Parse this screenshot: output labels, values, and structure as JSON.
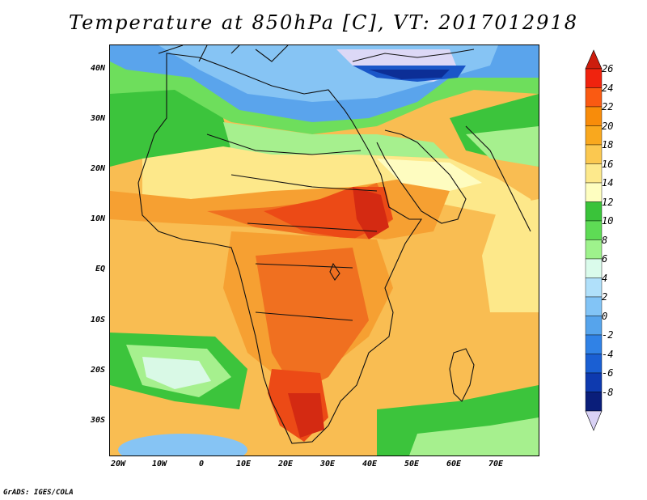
{
  "title": "Temperature at 850hPa [C], VT: 2017012918",
  "credit": "GrADS: IGES/COLA",
  "map": {
    "variable": "Temperature at 850hPa",
    "units": "C",
    "valid_time": "2017012918",
    "lat_labels": [
      "40N",
      "30N",
      "20N",
      "10N",
      "EQ",
      "10S",
      "20S",
      "30S"
    ],
    "lon_labels": [
      "20W",
      "10W",
      "0",
      "10E",
      "20E",
      "30E",
      "40E",
      "50E",
      "60E",
      "70E"
    ]
  },
  "colorbar": {
    "labels": [
      "26",
      "24",
      "22",
      "20",
      "18",
      "16",
      "14",
      "12",
      "10",
      "8",
      "6",
      "4",
      "2",
      "0",
      "-2",
      "-4",
      "-6",
      "-8"
    ],
    "colors": [
      "#f0230e",
      "#fa5a12",
      "#f88c0a",
      "#f9a81e",
      "#fbc850",
      "#fde98c",
      "#fefec0",
      "#3ac33a",
      "#5edb55",
      "#9ef28c",
      "#dafbeb",
      "#b0e0fa",
      "#82c4f6",
      "#56a4ec",
      "#3082e6",
      "#1a5fd3",
      "#0e3aaf",
      "#0a1e7a"
    ],
    "top_arrow_color": "#cd1d0d",
    "bottom_arrow_color": "#d9d2f5"
  },
  "palette": {
    "deep_red": "#d42a12",
    "red": "#ec4a16",
    "orange_red": "#f07020",
    "orange": "#f6a032",
    "light_orange": "#f9bd52",
    "yellow": "#fde88a",
    "pale_yellow": "#fefcc0",
    "green": "#3cc43c",
    "light_green": "#6ede5c",
    "pale_green": "#a6f08e",
    "mint": "#d9f9e6",
    "pale_blue": "#b2dcf8",
    "light_blue": "#86c4f4",
    "blue": "#5aa4ec",
    "mid_blue": "#3a80e2",
    "dark_blue": "#1a56c8",
    "navy": "#0c2e96",
    "lavender": "#dcd8f6"
  }
}
